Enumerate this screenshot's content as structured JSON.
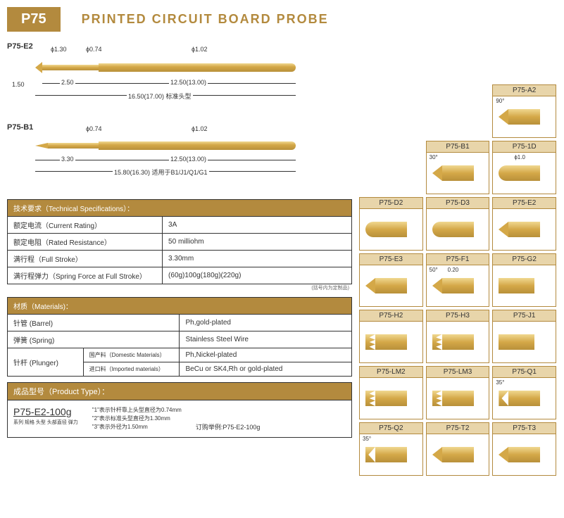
{
  "header": {
    "badge": "P75",
    "title": "PRINTED CIRCUIT BOARD  PROBE"
  },
  "diagrams": {
    "e2": {
      "label": "P75-E2",
      "dims": {
        "d_tip": "ϕ1.30",
        "d_shaft": "ϕ0.74",
        "d_body": "ϕ1.02",
        "tip_len": "1.50",
        "shaft_seg": "2.50",
        "body_seg": "12.50(13.00)",
        "total": "16.50(17.00) 标准头型"
      }
    },
    "b1": {
      "label": "P75-B1",
      "dims": {
        "d_shaft": "ϕ0.74",
        "d_body": "ϕ1.02",
        "shaft_seg": "3.30",
        "body_seg": "12.50(13.00)",
        "total": "15.80(16.30)  适用于B1/J1/Q1/G1"
      }
    }
  },
  "specs": {
    "header": "技术要求（Technical Specifications）：",
    "rows": [
      {
        "label": "额定电流（Current Rating）",
        "value": "3A"
      },
      {
        "label": "额定电阻（Rated Resistance）",
        "value": "50 milliohm"
      },
      {
        "label": "满行程（Full Stroke）",
        "value": "3.30mm"
      },
      {
        "label": "满行程弹力（Spring Force at Full Stroke）",
        "value": "(60g)100g(180g)(220g)"
      }
    ],
    "footnote": "(括号内为定制品)"
  },
  "materials": {
    "header": "材质（Materials)：",
    "rows": [
      {
        "label": "针管 (Barrel)",
        "sublabel": "",
        "value": "Ph,gold-plated"
      },
      {
        "label": "弹簧 (Spring)",
        "sublabel": "",
        "value": "Stainless Steel Wire"
      },
      {
        "label": "针杆 (Plunger)",
        "sublabel": "国产料（Domestic Materials）",
        "value": "Ph,Nickel-plated"
      },
      {
        "label": "",
        "sublabel": "进口料（Imported materials）",
        "value": "BeCu or SK4,Rh or gold-plated"
      }
    ]
  },
  "product_type": {
    "header": "成品型号（Product Type）：",
    "code": "P75-E2-100g",
    "code_parts": "系列 规格 头型 头部直径  弹力",
    "notes": [
      "\"1\"表示针杆靠上头型直径为0.74mm",
      "\"2\"表示标准头型直径为1.30mm",
      "\"3\"表示外径为1.50mm"
    ],
    "order_example": "订购举例:P75-E2-100g"
  },
  "tips": [
    {
      "label": "",
      "type": "empty"
    },
    {
      "label": "",
      "type": "empty"
    },
    {
      "label": "P75-A2",
      "type": "tri",
      "angle": "90°"
    },
    {
      "label": "",
      "type": "empty"
    },
    {
      "label": "P75-B1",
      "type": "tri",
      "angle": "30°"
    },
    {
      "label": "P75-1D",
      "type": "round",
      "dim": "ϕ1.0"
    },
    {
      "label": "P75-D2",
      "type": "round"
    },
    {
      "label": "P75-D3",
      "type": "round"
    },
    {
      "label": "P75-E2",
      "type": "tri"
    },
    {
      "label": "P75-E3",
      "type": "tri"
    },
    {
      "label": "P75-F1",
      "type": "tri",
      "angle": "50°",
      "dim": "0.20"
    },
    {
      "label": "P75-G2",
      "type": "flat"
    },
    {
      "label": "P75-H2",
      "type": "crown"
    },
    {
      "label": "P75-H3",
      "type": "crown"
    },
    {
      "label": "P75-J1",
      "type": "flat"
    },
    {
      "label": "P75-LM2",
      "type": "crown"
    },
    {
      "label": "P75-LM3",
      "type": "crown"
    },
    {
      "label": "P75-Q1",
      "type": "cup",
      "angle": "35°"
    },
    {
      "label": "P75-Q2",
      "type": "cup",
      "angle": "35°"
    },
    {
      "label": "P75-T2",
      "type": "tri"
    },
    {
      "label": "P75-T3",
      "type": "tri"
    }
  ],
  "colors": {
    "brand": "#b38a3e",
    "gold_light": "#f0d890",
    "gold_mid": "#d4a848",
    "gold_dark": "#b8903a",
    "tip_label_bg": "#e8d5aa",
    "border": "#333333"
  }
}
